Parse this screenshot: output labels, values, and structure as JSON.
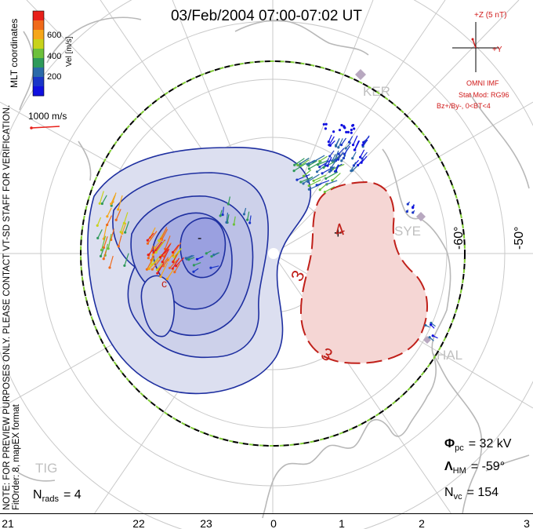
{
  "title": "03/Feb/2004 07:00-07:02 UT",
  "colorbar": {
    "ticks": [
      "600",
      "400",
      "200"
    ],
    "unit_label": "Vel [m/s]",
    "coord_label": "MLT coordinates",
    "colors": [
      "#e8201a",
      "#f06a1a",
      "#f5a61a",
      "#c8d21a",
      "#6cc03a",
      "#2e9a5a",
      "#2a6aa8",
      "#1a36c8",
      "#1010e0"
    ]
  },
  "scale_vector_label": "1000 m/s",
  "imf": {
    "z_label": "+Z (5 nT)",
    "y_label": "+Y",
    "source": "OMNI IMF",
    "model": "Stat Mod: RG96",
    "condition": "Bz+/By-, 0<BT<4"
  },
  "stations": [
    "KER",
    "SYE",
    "HAL",
    "TIG"
  ],
  "latitude_labels": [
    "-60°",
    "-50°"
  ],
  "contour_labels": [
    "-",
    "4",
    "+",
    "3",
    "3"
  ],
  "side_note": "NOTE: FOR PREVIEW PURPOSES ONLY. PLEASE CONTACT VT-SD STAFF FOR VERIFICATION.",
  "fit_note": "FitOrder: 8, mapEX format",
  "stats": {
    "nrads_symbol": "N",
    "nrads_sub": "rads",
    "nrads_value": "= 4",
    "phi_symbol": "Φ",
    "phi_sub": "pc",
    "phi_value": "= 32 kV",
    "lambda_symbol": "Λ",
    "lambda_sub": "HM",
    "lambda_value": "= -59°",
    "nvc_symbol": "N",
    "nvc_sub": "vc",
    "nvc_value": "= 154"
  },
  "mlt_axis": [
    "21",
    "22",
    "23",
    "0",
    "1",
    "2",
    "3"
  ],
  "colors": {
    "negative_fill": "#c8cbe8",
    "negative_contour": "#1e2fa0",
    "positive_fill": "#f5d6d4",
    "positive_contour": "#c0201a",
    "coast": "#b8b8b8",
    "boundary_green": "#7fcc33",
    "grid": "#c9c9c9",
    "annotation_red": "#d01a1a"
  }
}
